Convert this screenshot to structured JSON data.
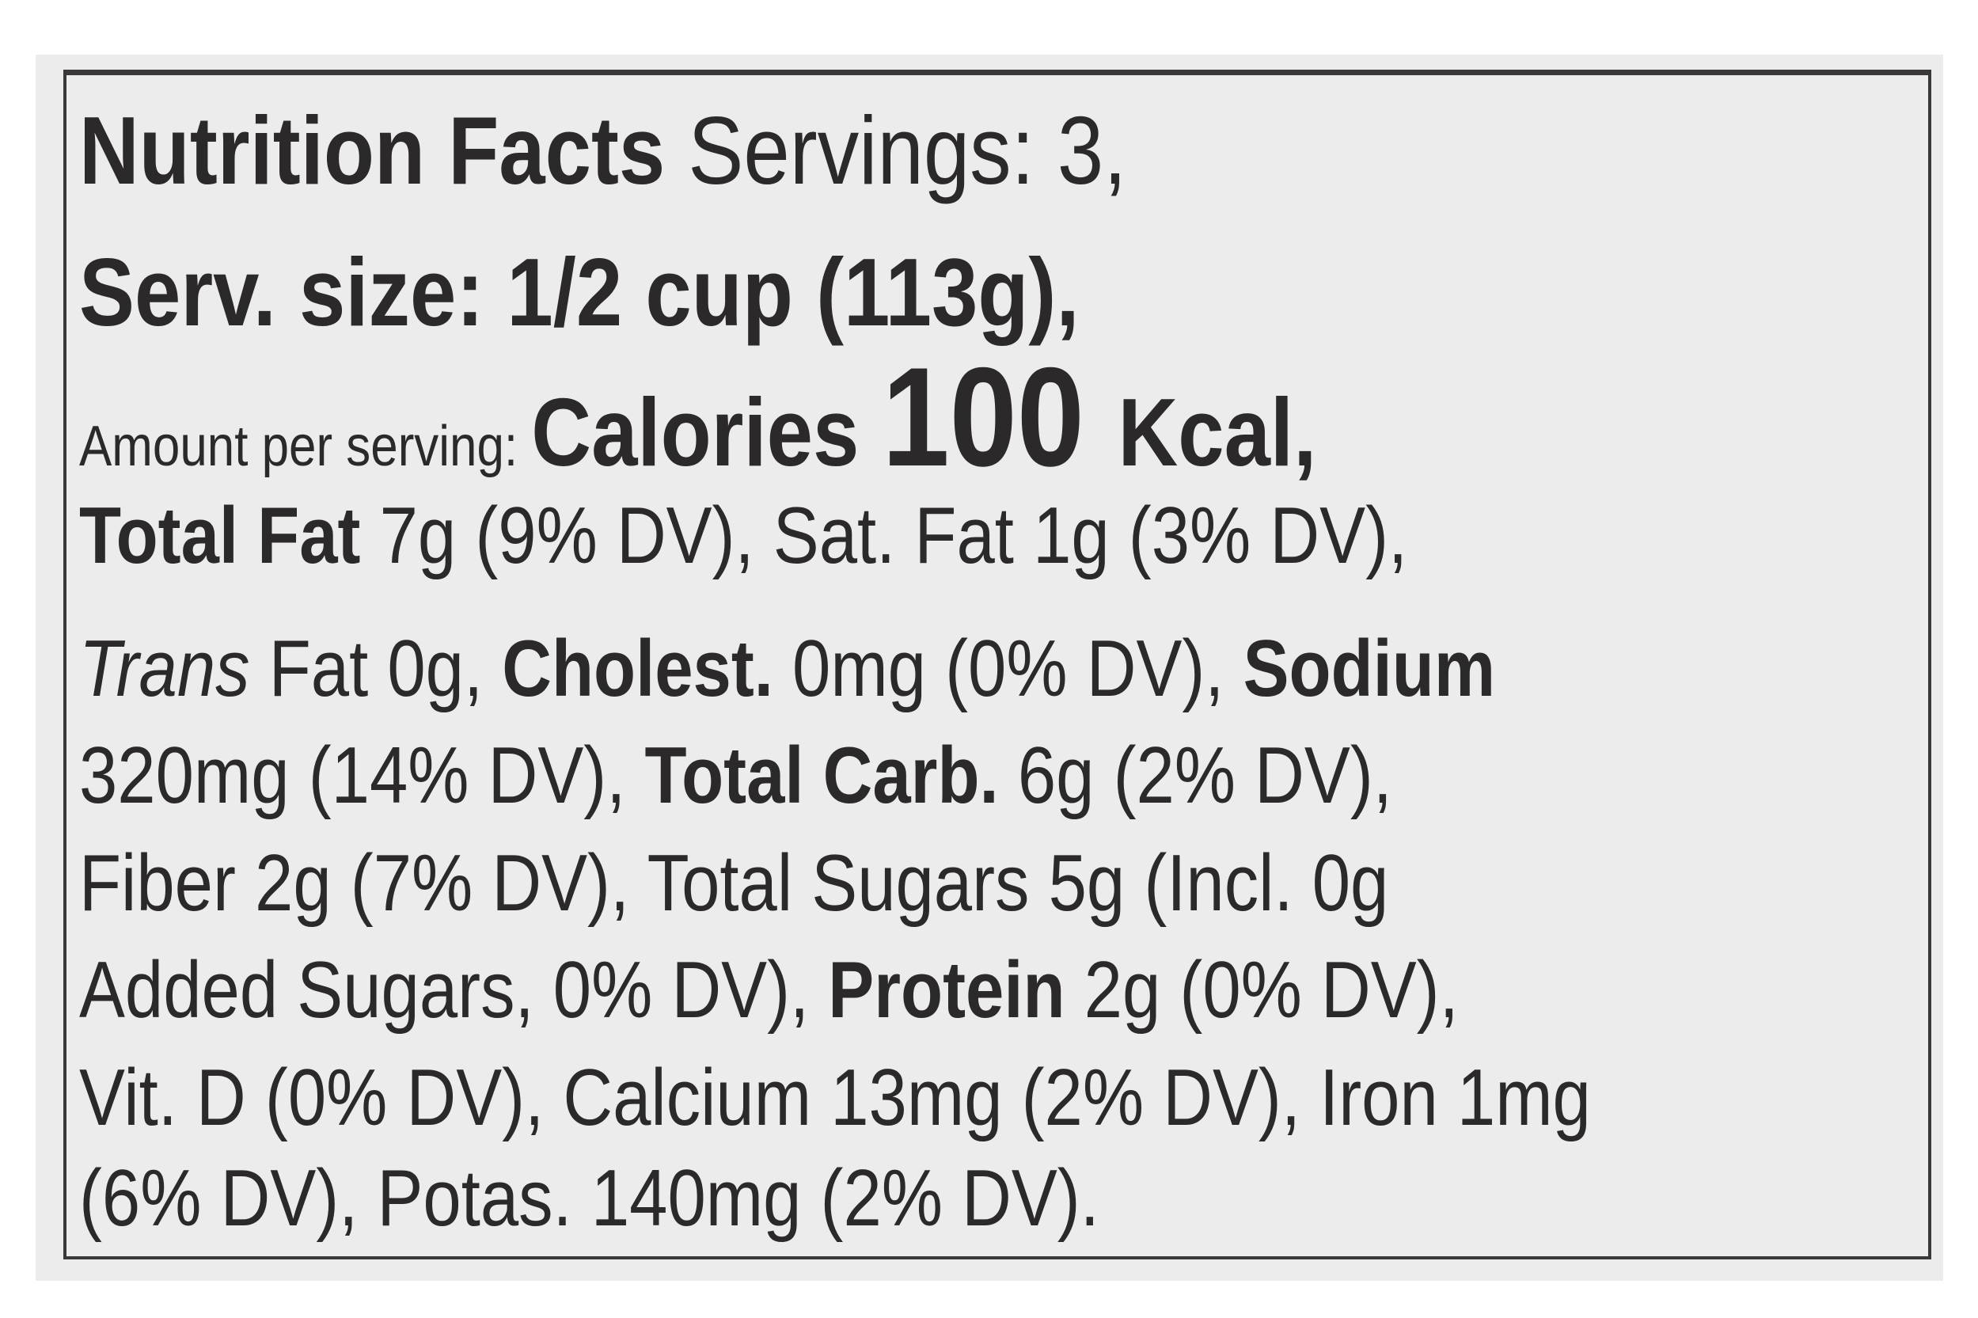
{
  "label": {
    "lines": [
      [
        {
          "t": "Nutrition Facts ",
          "s": "b"
        },
        {
          "t": "Servings: 3,",
          "s": "n"
        }
      ],
      [
        {
          "t": "Serv. size: 1/2 cup (113g),",
          "s": "b"
        }
      ],
      [
        {
          "t": "Amount per serving: ",
          "s": "n"
        },
        {
          "t": "Calories ",
          "s": "b big"
        },
        {
          "t": "100 ",
          "s": "b huge"
        },
        {
          "t": "Kcal,",
          "s": "b big"
        }
      ],
      [
        {
          "t": "Total Fat ",
          "s": "b"
        },
        {
          "t": "7g (9% DV), Sat. Fat 1g (3% DV),",
          "s": "n"
        }
      ],
      [
        {
          "t": "Trans",
          "s": "i"
        },
        {
          "t": " Fat 0g, ",
          "s": "n"
        },
        {
          "t": "Cholest.",
          "s": "b"
        },
        {
          "t": " 0mg (0% DV), ",
          "s": "n"
        },
        {
          "t": "Sodium",
          "s": "b"
        }
      ],
      [
        {
          "t": "320mg (14% DV), ",
          "s": "n"
        },
        {
          "t": "Total Carb.",
          "s": "b"
        },
        {
          "t": " 6g (2% DV),",
          "s": "n"
        }
      ],
      [
        {
          "t": "Fiber 2g (7% DV), Total Sugars 5g (Incl. 0g",
          "s": "n"
        }
      ],
      [
        {
          "t": "Added Sugars, 0% DV), ",
          "s": "n"
        },
        {
          "t": "Protein",
          "s": "b"
        },
        {
          "t": " 2g (0% DV),",
          "s": "n"
        }
      ],
      [
        {
          "t": "Vit. D (0% DV), Calcium 13mg (2% DV), Iron 1mg",
          "s": "n"
        }
      ],
      [
        {
          "t": "(6% DV), Potas. 140mg (2% DV).",
          "s": "n"
        }
      ]
    ]
  },
  "colors": {
    "ink": "#2b2929",
    "paper": "#ececec",
    "border": "#3a3838"
  }
}
